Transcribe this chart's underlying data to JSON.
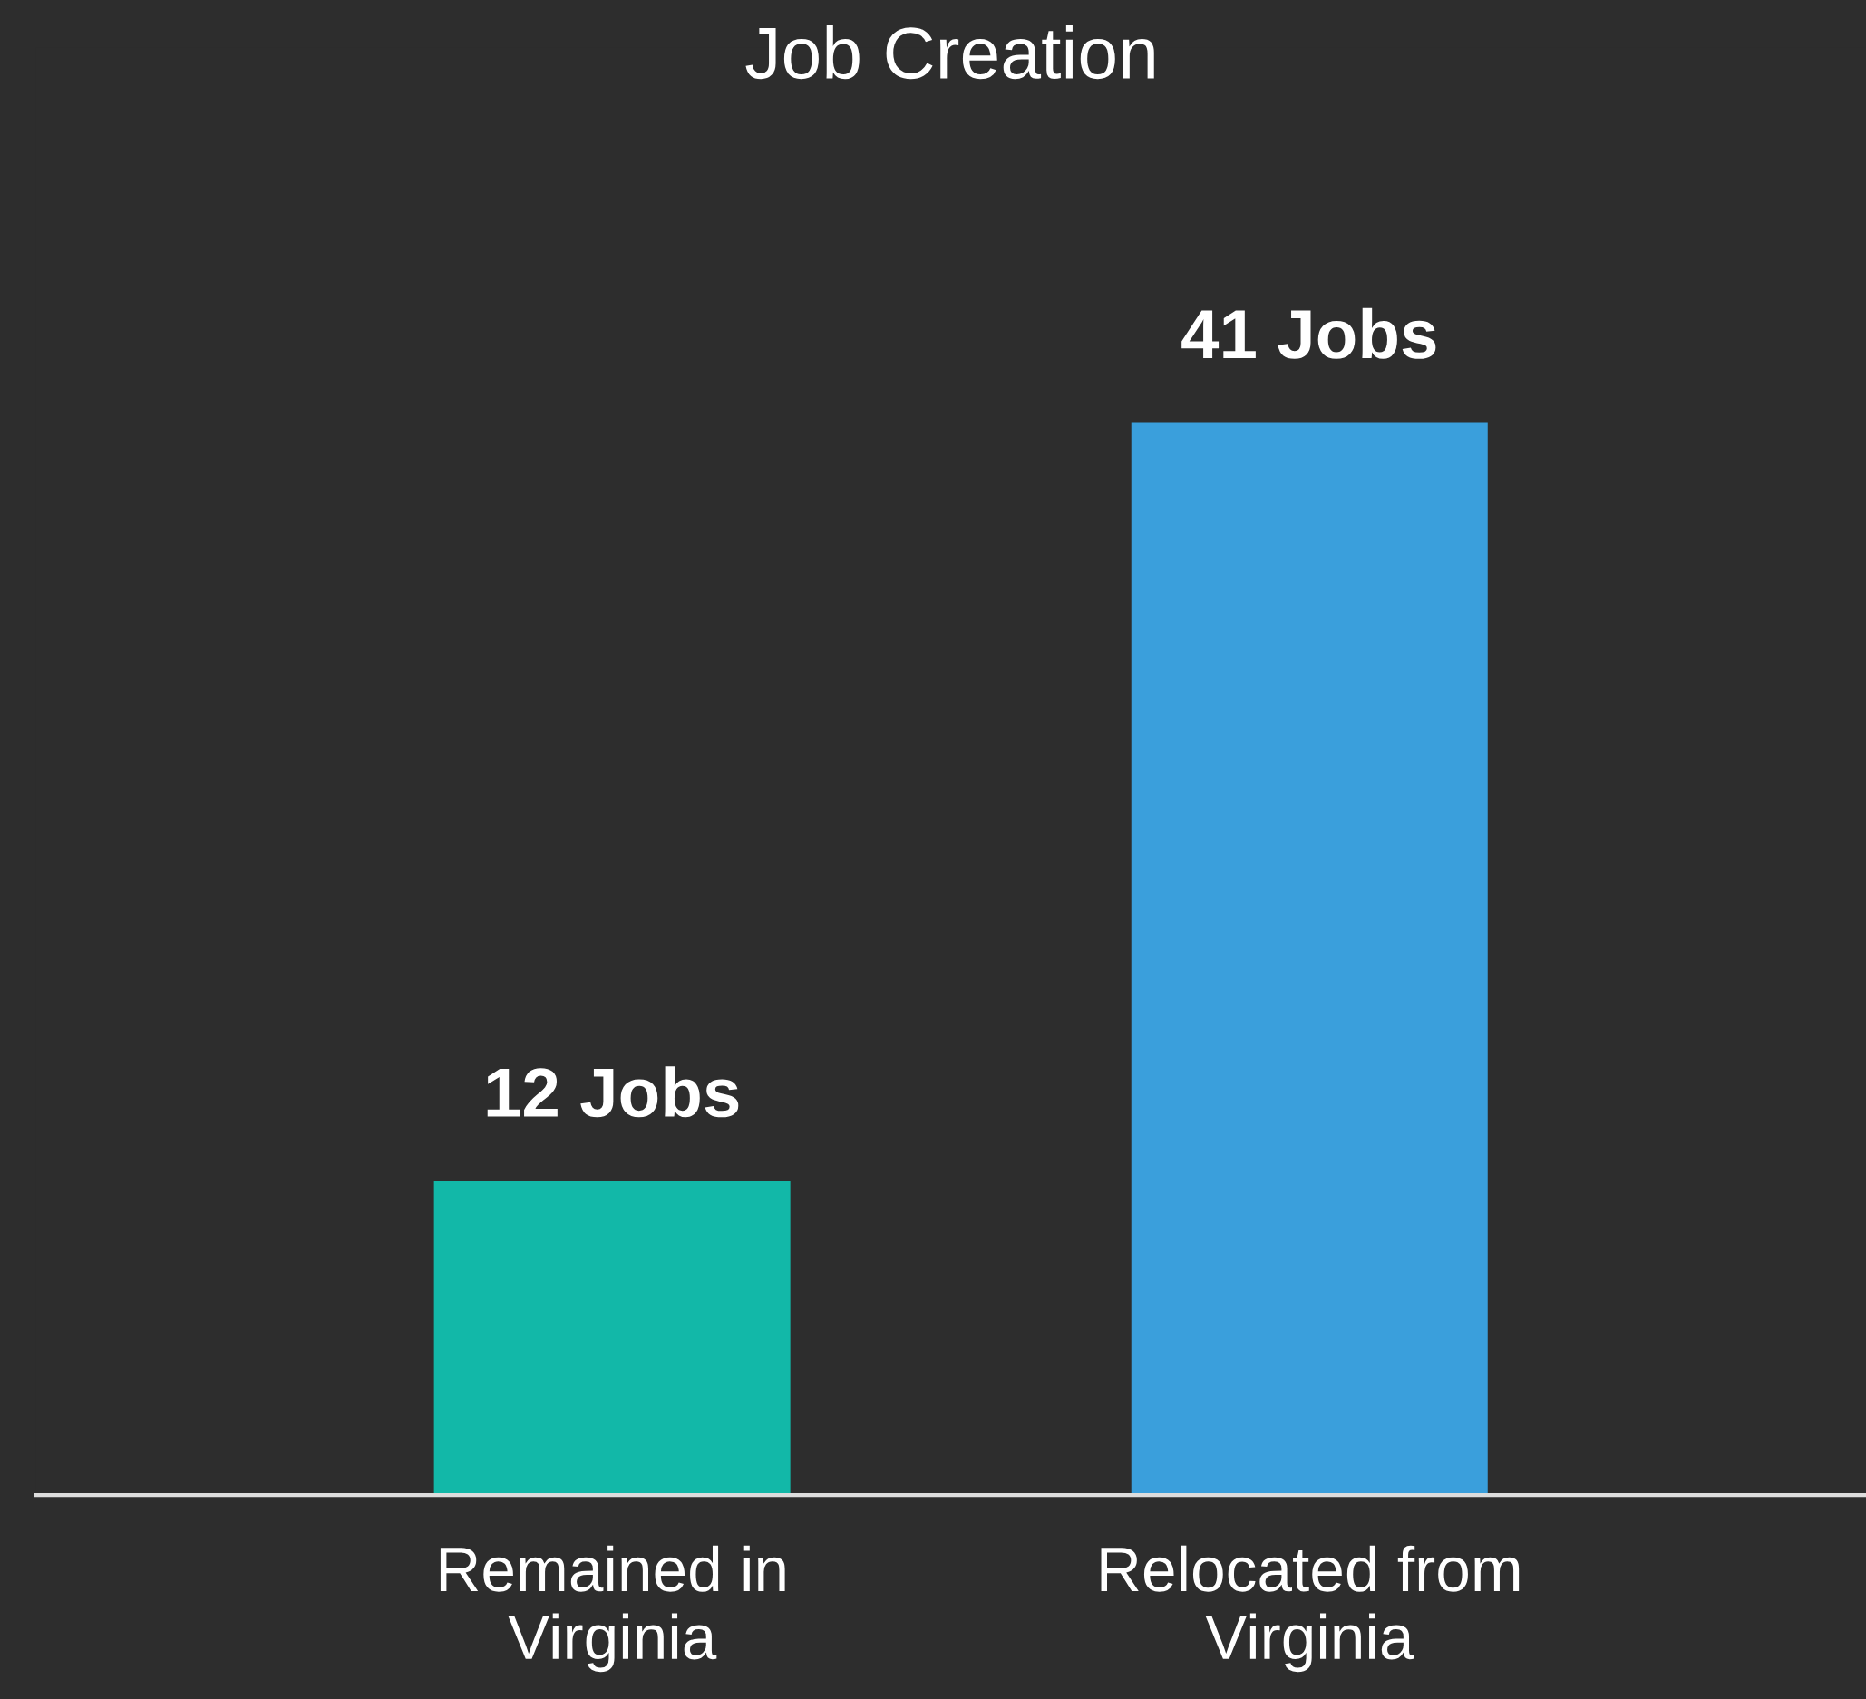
{
  "chart_data": {
    "type": "bar",
    "title": "Job Creation",
    "categories": [
      "Remained in\nVirginia",
      "Relocated from\nVirginia"
    ],
    "values": [
      12,
      41
    ],
    "colors": [
      "#12b8a8",
      "#3a9fdc"
    ],
    "value_labels": [
      "12 Jobs",
      "41 Jobs"
    ],
    "grid": false,
    "legend": false
  }
}
